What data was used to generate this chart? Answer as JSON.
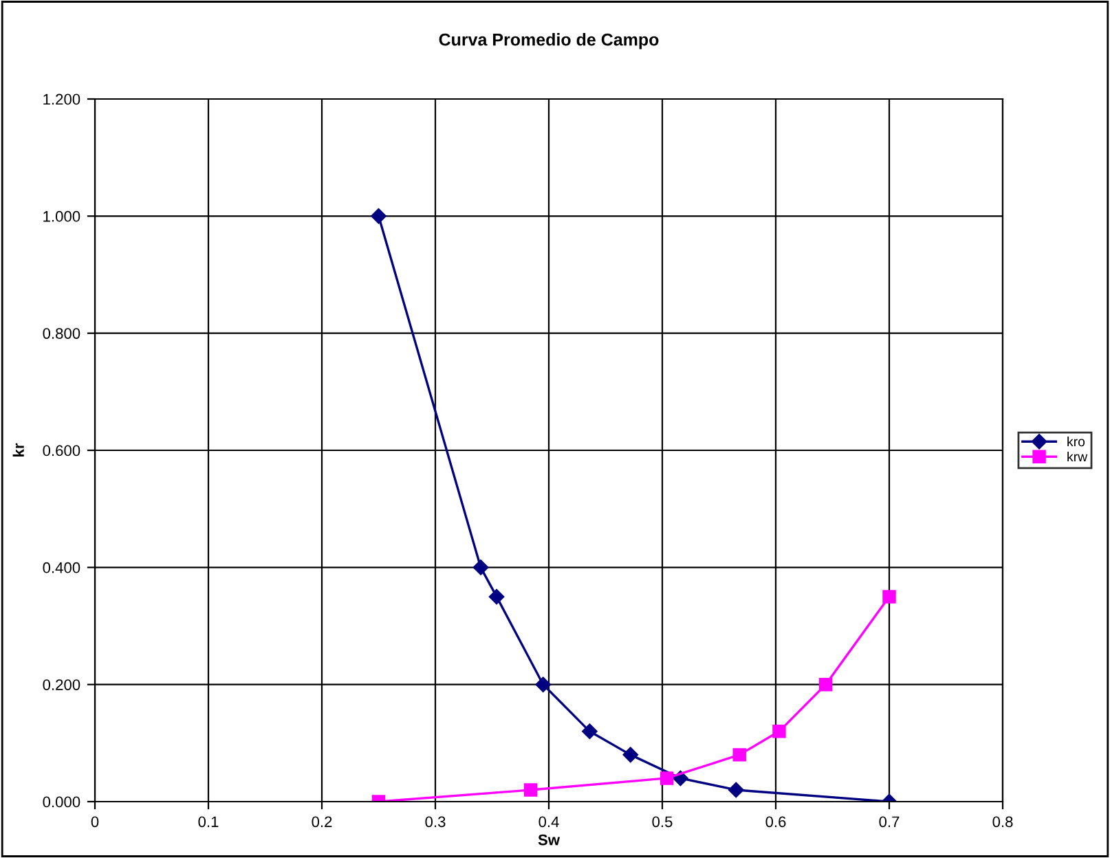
{
  "chart_data": {
    "type": "line",
    "title": "Curva Promedio de Campo",
    "xlabel": "Sw",
    "ylabel": "kr",
    "xlim": [
      0,
      0.8
    ],
    "xticks": [
      {
        "value": 0,
        "label": "0"
      },
      0.1,
      0.2,
      0.3,
      0.4,
      0.5,
      0.6,
      0.7,
      0.8
    ],
    "ylim": [
      0,
      1.2
    ],
    "yticks": [
      {
        "value": 0,
        "label": "0.000"
      },
      {
        "value": 0.2,
        "label": "0.200"
      },
      {
        "value": 0.4,
        "label": "0.400"
      },
      {
        "value": 0.6,
        "label": "0.600"
      },
      {
        "value": 0.8,
        "label": "0.800"
      },
      {
        "value": 1.0,
        "label": "1.000"
      },
      {
        "value": 1.2,
        "label": "1.200"
      }
    ],
    "grid": true,
    "legend": "right",
    "series": [
      {
        "name": "kro",
        "color": "#000080",
        "marker": "diamond",
        "x": [
          0.25,
          0.34,
          0.354,
          0.395,
          0.436,
          0.472,
          0.516,
          0.565,
          0.7
        ],
        "values": [
          1.0,
          0.4,
          0.35,
          0.2,
          0.12,
          0.08,
          0.04,
          0.02,
          0.0
        ]
      },
      {
        "name": "krw",
        "color": "#ff00ff",
        "marker": "square",
        "x": [
          0.25,
          0.384,
          0.504,
          0.568,
          0.603,
          0.644,
          0.7
        ],
        "values": [
          0.0,
          0.02,
          0.04,
          0.08,
          0.12,
          0.2,
          0.35
        ]
      }
    ]
  }
}
